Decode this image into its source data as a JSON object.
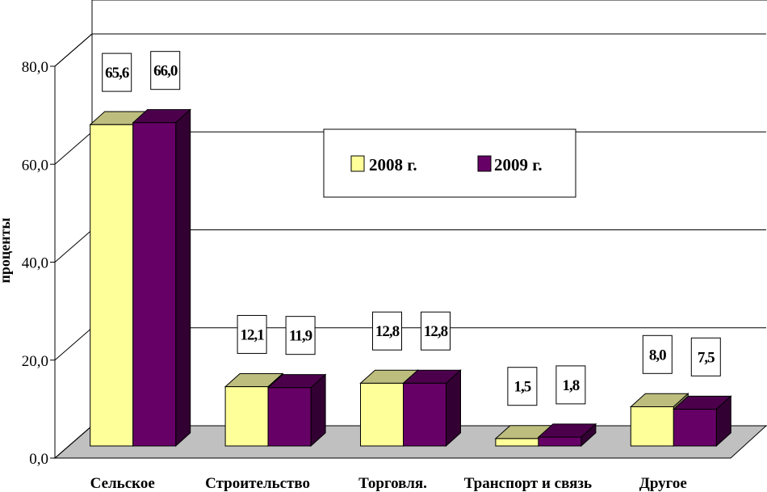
{
  "colors": {
    "series_2008_front": "#FFFF99",
    "series_2008_top": "#BDBD7E",
    "series_2008_side": "#8C8C5E",
    "series_2009_front": "#660066",
    "series_2009_top": "#4C004C",
    "series_2009_side": "#330033",
    "floor": "#C0C0C0",
    "grid": "#000000"
  },
  "chart_data": {
    "type": "bar",
    "title": "",
    "xlabel": "",
    "ylabel": "проценты",
    "ylim": [
      0,
      80
    ],
    "yticks": [
      "0,0",
      "20,0",
      "40,0",
      "60,0",
      "80,0"
    ],
    "ytick_values": [
      0,
      20,
      40,
      60,
      80
    ],
    "grid": true,
    "legend_position": "center",
    "categories": [
      "Сельское",
      "Строительство",
      "Торговля.",
      "Транспорт и связь",
      "Другое"
    ],
    "series": [
      {
        "name": "2008 г.",
        "values": [
          65.6,
          12.1,
          12.8,
          1.5,
          8.0
        ],
        "labels": [
          "65,6",
          "12,1",
          "12,8",
          "1,5",
          "8,0"
        ]
      },
      {
        "name": "2009 г.",
        "values": [
          66.0,
          11.9,
          12.8,
          1.8,
          7.5
        ],
        "labels": [
          "66,0",
          "11,9",
          "12,8",
          "1,8",
          "7,5"
        ]
      }
    ]
  }
}
